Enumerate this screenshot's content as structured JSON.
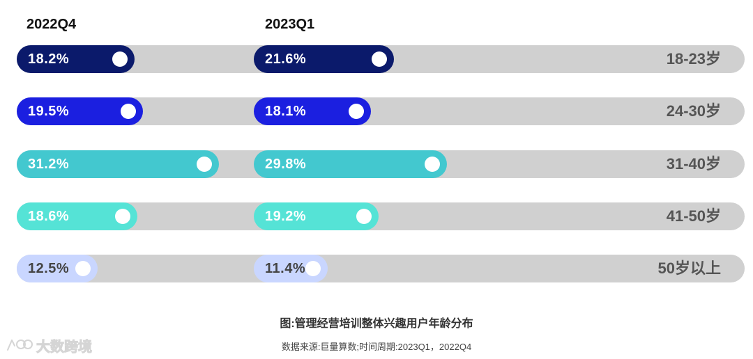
{
  "chart_data": {
    "type": "bar",
    "periods": [
      "2022Q4",
      "2023Q1"
    ],
    "categories": [
      "18-23岁",
      "24-30岁",
      "31-40岁",
      "41-50岁",
      "50岁以上"
    ],
    "series": [
      {
        "name": "2022Q4",
        "values": [
          18.2,
          19.5,
          31.2,
          18.6,
          12.5
        ],
        "labels": [
          "18.2%",
          "19.5%",
          "31.2%",
          "18.6%",
          "12.5%"
        ]
      },
      {
        "name": "2023Q1",
        "values": [
          21.6,
          18.1,
          29.8,
          19.2,
          11.4
        ],
        "labels": [
          "21.6%",
          "18.1%",
          "29.8%",
          "19.2%",
          "11.4%"
        ]
      }
    ],
    "colors": [
      "#0b1a6b",
      "#1b1fe0",
      "#43c8cf",
      "#55e3d6",
      "#c9d6ff"
    ],
    "label_colors": [
      "#ffffff",
      "#ffffff",
      "#ffffff",
      "#ffffff",
      "#444444"
    ],
    "track_color": "#d0d0d0",
    "title": "图:管理经营培训整体兴趣用户年龄分布",
    "source": "数据来源:巨量算数;时间周期:2023Q1，2022Q4"
  },
  "watermark": {
    "text": "大数跨境",
    "icon": "logo-icon"
  }
}
